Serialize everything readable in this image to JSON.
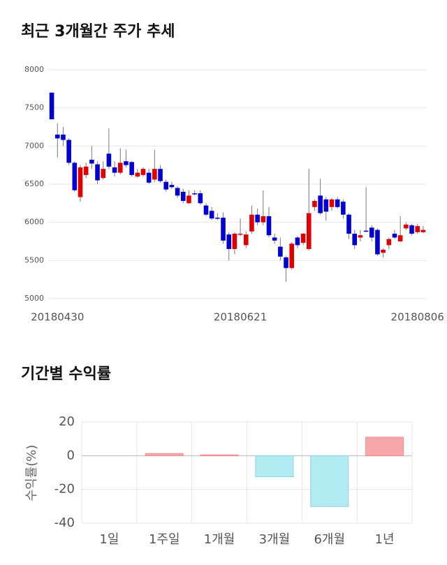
{
  "chart_data": [
    {
      "type": "candlestick",
      "title": "최근 3개월간 주가 추세",
      "categories": [
        null,
        "20180430",
        null,
        null,
        null,
        null,
        null,
        null,
        null,
        null,
        null,
        null,
        null,
        null,
        null,
        null,
        null,
        null,
        null,
        null,
        null,
        null,
        null,
        null,
        null,
        null,
        null,
        null,
        null,
        null,
        null,
        null,
        null,
        "20180621",
        null,
        null,
        null,
        null,
        null,
        null,
        null,
        null,
        null,
        null,
        null,
        null,
        null,
        null,
        null,
        null,
        null,
        null,
        null,
        null,
        null,
        null,
        null,
        null,
        null,
        null,
        null,
        null,
        null,
        null,
        "20180806",
        null
      ],
      "series": [
        {
          "name": "open",
          "values": [
            7700,
            7150,
            7150,
            7080,
            6780,
            6330,
            6620,
            6820,
            6760,
            6580,
            6900,
            6720,
            6650,
            6800,
            6790,
            6600,
            6620,
            6650,
            6560,
            6700,
            6530,
            6490,
            6450,
            6400,
            6250,
            6380,
            6380,
            6220,
            6150,
            6060,
            6060,
            5840,
            5650,
            5840,
            5700,
            5880,
            6100,
            6000,
            6080,
            5800,
            5680,
            5540,
            5400,
            5800,
            5730,
            5650,
            6200,
            6350,
            6300,
            6200,
            6300,
            6270,
            6100,
            5850,
            5800,
            5890,
            5930,
            5900,
            5600,
            5700,
            5850,
            5750,
            5920,
            5960,
            5870,
            5870
          ]
        },
        {
          "name": "high",
          "values": [
            7700,
            7300,
            7250,
            7100,
            6800,
            6750,
            6780,
            7000,
            6800,
            6800,
            7230,
            6800,
            6970,
            6950,
            6800,
            6700,
            6720,
            6700,
            6950,
            6750,
            6560,
            6530,
            6470,
            6440,
            6420,
            6420,
            6420,
            6250,
            6200,
            6120,
            6130,
            5870,
            5870,
            6050,
            5880,
            6220,
            6180,
            6420,
            6200,
            5850,
            5800,
            5560,
            5740,
            5820,
            5860,
            6700,
            6300,
            6570,
            6330,
            6320,
            6330,
            6300,
            6120,
            5900,
            5900,
            6460,
            5960,
            5920,
            5660,
            5800,
            5900,
            6080,
            6000,
            5980,
            5980,
            5950
          ]
        },
        {
          "name": "low",
          "values": [
            7350,
            6850,
            7000,
            6750,
            6400,
            6270,
            6580,
            6700,
            6500,
            6560,
            6700,
            6600,
            6630,
            6720,
            6600,
            6580,
            6600,
            6500,
            6530,
            6520,
            6400,
            6440,
            6320,
            6250,
            6240,
            6350,
            6230,
            6080,
            6030,
            6030,
            5720,
            5500,
            5580,
            5820,
            5660,
            5850,
            5960,
            5960,
            5800,
            5720,
            5500,
            5220,
            5380,
            5660,
            5700,
            5630,
            6150,
            6100,
            6020,
            6150,
            6180,
            6050,
            5780,
            5650,
            5750,
            5870,
            5750,
            5560,
            5540,
            5650,
            5780,
            5740,
            5900,
            5830,
            5850,
            5860
          ]
        },
        {
          "name": "close",
          "values": [
            7350,
            7100,
            7080,
            6780,
            6420,
            6720,
            6730,
            6770,
            6550,
            6700,
            6730,
            6650,
            6780,
            6750,
            6620,
            6650,
            6700,
            6520,
            6700,
            6540,
            6430,
            6460,
            6350,
            6280,
            6350,
            6370,
            6250,
            6100,
            6050,
            6050,
            5760,
            5650,
            5850,
            5850,
            5840,
            6100,
            6000,
            6080,
            5830,
            5760,
            5550,
            5400,
            5720,
            5700,
            5850,
            6120,
            6280,
            6120,
            6140,
            6300,
            6200,
            6100,
            5850,
            5700,
            5830,
            5880,
            5800,
            5580,
            5640,
            5780,
            5800,
            5830,
            5970,
            5850,
            5950,
            5900
          ]
        }
      ],
      "up_color": "#e00000",
      "down_color": "#0000d0",
      "ylim": [
        5000,
        8000
      ],
      "yticks": [
        5000,
        5500,
        6000,
        6500,
        7000,
        7500,
        8000
      ],
      "grid": true
    },
    {
      "type": "bar",
      "title": "기간별 수익률",
      "y_label": "수익률(%)",
      "categories": [
        "1일",
        "1주일",
        "1개월",
        "3개월",
        "6개월",
        "1년"
      ],
      "values": [
        0,
        1.3,
        0.5,
        -12.5,
        -30.2,
        11.0
      ],
      "up_color": "#f9a8aa",
      "down_color": "#b3ebf3",
      "ylim": [
        -40,
        20
      ],
      "yticks": [
        -40,
        -20,
        0,
        20
      ],
      "grid": true
    }
  ]
}
